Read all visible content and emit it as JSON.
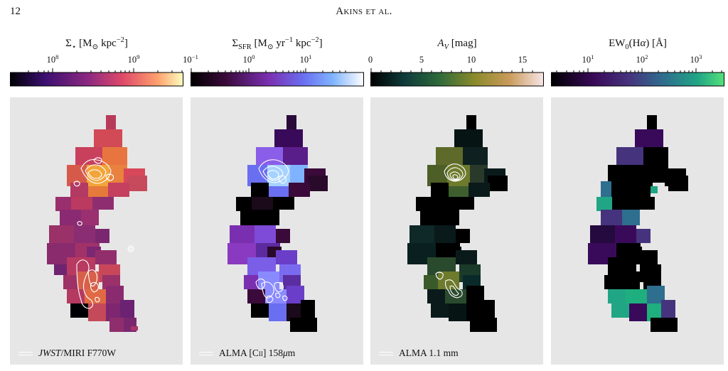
{
  "header": {
    "page_number": "12",
    "running_head": "Akins et al."
  },
  "panels": [
    {
      "title": "Σ⋆ [M⊙ kpc⁻²]",
      "ticks": [
        "10⁸",
        "10⁹"
      ],
      "colormap": [
        "#000004",
        "#3b0f70",
        "#8c2981",
        "#de4968",
        "#fe9f6d",
        "#fcfdbf"
      ],
      "legend": "JWST/MIRI F770W"
    },
    {
      "title": "ΣSFR [M⊙ yr⁻¹ kpc⁻²]",
      "ticks": [
        "10⁻¹",
        "10⁰",
        "10¹"
      ],
      "colormap": [
        "#000000",
        "#3a0a3a",
        "#7a2fb0",
        "#6a6ef0",
        "#7fb3ff",
        "#ffffff"
      ],
      "legend": "ALMA [C II] 158 μm"
    },
    {
      "title": "AV [mag]",
      "ticks": [
        "0",
        "5",
        "10",
        "15"
      ],
      "colormap": [
        "#000000",
        "#0f3b3b",
        "#2f6a3a",
        "#8a8a2a",
        "#c99a5a",
        "#f7e6e6"
      ],
      "legend": "ALMA 1.1 mm"
    },
    {
      "title": "EW0(Hα) [Å]",
      "ticks": [
        "10¹",
        "10²",
        "10³"
      ],
      "colormap": [
        "#000000",
        "#3a0a5a",
        "#46337e",
        "#2e6e8e",
        "#21a685",
        "#55e07a"
      ],
      "legend": ""
    }
  ]
}
